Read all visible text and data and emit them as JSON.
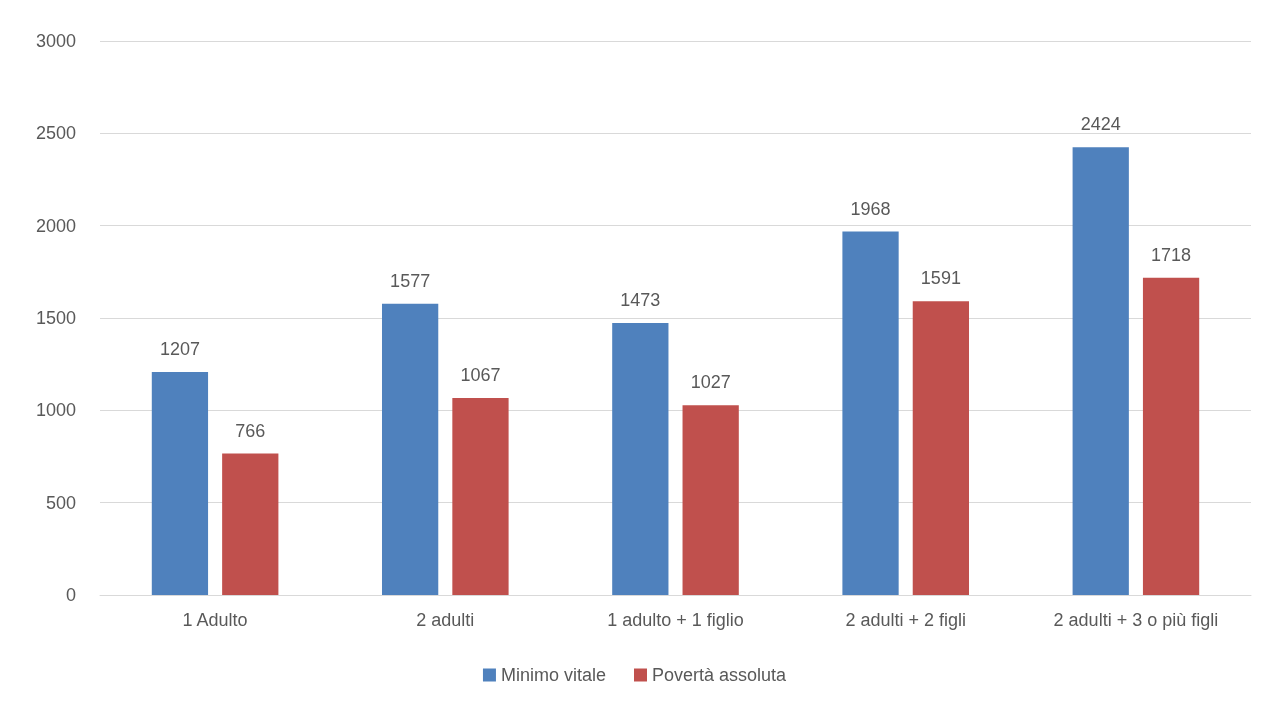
{
  "chart_data": {
    "type": "bar",
    "categories": [
      "1 Adulto",
      "2 adulti",
      "1 adulto + 1 figlio",
      "2 adulti + 2 figli",
      "2 adulti + 3 o più figli"
    ],
    "series": [
      {
        "name": "Minimo vitale",
        "color": "#4f81bd",
        "values": [
          1207,
          1577,
          1473,
          1968,
          2424
        ]
      },
      {
        "name": "Povertà assoluta",
        "color": "#c0504d",
        "values": [
          766,
          1067,
          1027,
          1591,
          1718
        ]
      }
    ],
    "ylim": [
      0,
      3000
    ],
    "yticks": [
      0,
      500,
      1000,
      1500,
      2000,
      2500,
      3000
    ],
    "grid": "y",
    "legend": "bottom",
    "data_labels": true
  }
}
